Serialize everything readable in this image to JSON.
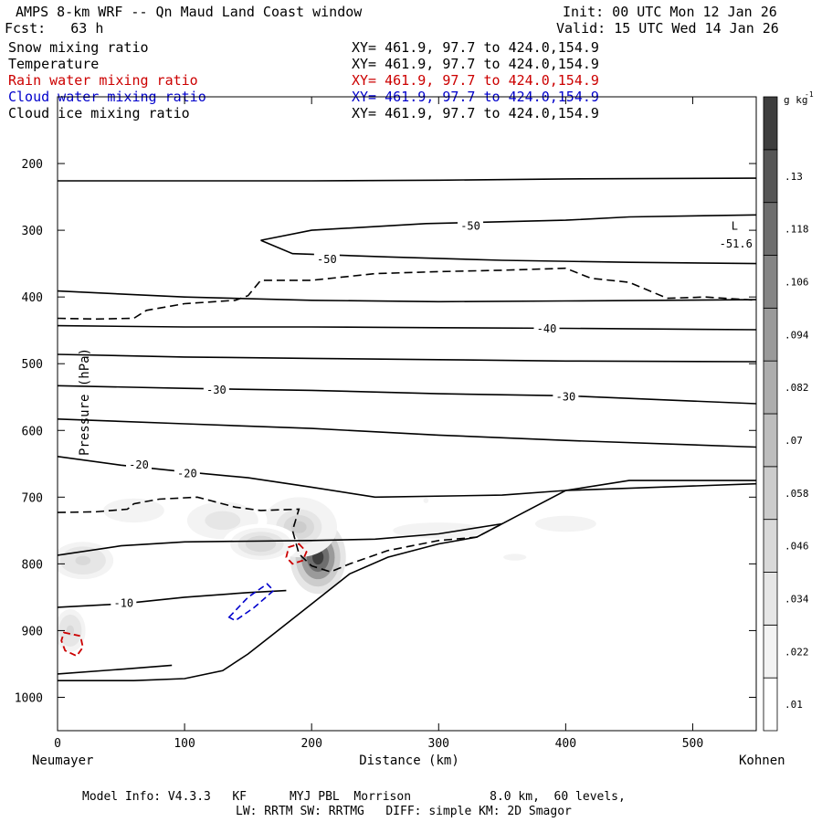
{
  "header": {
    "title": "AMPS 8-km WRF -- Qn Maud Land Coast window",
    "init": "Init: 00 UTC Mon 12 Jan 26",
    "fcst": "Fcst:   63 h",
    "valid": "Valid: 15 UTC Wed 14 Jan 26"
  },
  "legend": [
    {
      "name": "Snow mixing ratio",
      "xy": "XY= 461.9, 97.7 to 424.0,154.9",
      "color": "#000000"
    },
    {
      "name": "Temperature",
      "xy": "XY= 461.9, 97.7 to 424.0,154.9",
      "color": "#000000"
    },
    {
      "name": "Rain water mixing ratio",
      "xy": "XY= 461.9, 97.7 to 424.0,154.9",
      "color": "#cc0000"
    },
    {
      "name": "Cloud water mixing ratio",
      "xy": "XY= 461.9, 97.7 to 424.0,154.9",
      "color": "#0000cc"
    },
    {
      "name": "Cloud ice mixing ratio",
      "xy": "XY= 461.9, 97.7 to 424.0,154.9",
      "color": "#000000"
    }
  ],
  "chart_data": {
    "type": "cross-section contour",
    "title": "AMPS 8-km WRF -- Qn Maud Land Coast window",
    "xlabel": "Distance (km)",
    "ylabel": "Pressure (hPa)",
    "xlim": [
      0,
      550
    ],
    "ylim": [
      1050,
      100
    ],
    "x_ticks": [
      0,
      100,
      200,
      300,
      400,
      500
    ],
    "y_ticks": [
      200,
      300,
      400,
      500,
      600,
      700,
      800,
      900,
      1000
    ],
    "left_endpoint": "Neumayer",
    "right_endpoint": "Kohnen",
    "colorbar": {
      "unit": "g kg",
      "unit_exponent": "-1",
      "levels": [
        ".01",
        ".022",
        ".034",
        ".046",
        ".058",
        ".07",
        ".082",
        ".094",
        ".106",
        ".118",
        ".13"
      ],
      "grays": [
        "#ffffff",
        "#f3f3f3",
        "#e6e6e6",
        "#d9d9d9",
        "#cccccc",
        "#bdbdbd",
        "#adadad",
        "#9a9a9a",
        "#858585",
        "#6e6e6e",
        "#565656",
        "#3e3e3e"
      ]
    },
    "temperature_contours": [
      {
        "level": -50,
        "points": [
          [
            0,
            226
          ],
          [
            100,
            226
          ],
          [
            200,
            226
          ],
          [
            300,
            225
          ],
          [
            400,
            223
          ],
          [
            550,
            222
          ]
        ]
      },
      {
        "level": -50,
        "points": [
          [
            160,
            315
          ],
          [
            200,
            300
          ],
          [
            290,
            290
          ],
          [
            400,
            285
          ],
          [
            450,
            280
          ],
          [
            550,
            277
          ]
        ]
      },
      {
        "level": -50,
        "points": [
          [
            160,
            315
          ],
          [
            185,
            335
          ],
          [
            260,
            340
          ],
          [
            350,
            345
          ],
          [
            450,
            348
          ],
          [
            550,
            350
          ]
        ]
      },
      {
        "level": -45,
        "points": [
          [
            0,
            391
          ],
          [
            100,
            400
          ],
          [
            200,
            405
          ],
          [
            300,
            407
          ],
          [
            400,
            406
          ],
          [
            550,
            404
          ]
        ]
      },
      {
        "level": -40,
        "points": [
          [
            0,
            443
          ],
          [
            100,
            445
          ],
          [
            200,
            445
          ],
          [
            300,
            446
          ],
          [
            400,
            447
          ],
          [
            550,
            449
          ]
        ]
      },
      {
        "level": -35,
        "points": [
          [
            0,
            486
          ],
          [
            100,
            490
          ],
          [
            200,
            492
          ],
          [
            300,
            494
          ],
          [
            400,
            496
          ],
          [
            550,
            497
          ]
        ]
      },
      {
        "level": -30,
        "points": [
          [
            0,
            533
          ],
          [
            100,
            537
          ],
          [
            200,
            540
          ],
          [
            300,
            545
          ],
          [
            400,
            548
          ],
          [
            550,
            560
          ]
        ]
      },
      {
        "level": -25,
        "points": [
          [
            0,
            583
          ],
          [
            100,
            590
          ],
          [
            200,
            597
          ],
          [
            300,
            607
          ],
          [
            400,
            615
          ],
          [
            550,
            625
          ]
        ]
      },
      {
        "level": -20,
        "points": [
          [
            0,
            639
          ],
          [
            50,
            652
          ],
          [
            100,
            662
          ],
          [
            150,
            671
          ],
          [
            200,
            685
          ],
          [
            250,
            700
          ],
          [
            350,
            697
          ],
          [
            400,
            690
          ],
          [
            550,
            680
          ]
        ]
      },
      {
        "level": -15,
        "points": [
          [
            0,
            787
          ],
          [
            50,
            773
          ],
          [
            100,
            767
          ],
          [
            200,
            765
          ],
          [
            250,
            763
          ],
          [
            300,
            755
          ],
          [
            350,
            740
          ]
        ]
      },
      {
        "level": -10,
        "points": [
          [
            0,
            865
          ],
          [
            50,
            860
          ],
          [
            100,
            850
          ],
          [
            150,
            843
          ],
          [
            180,
            840
          ]
        ]
      },
      {
        "level": -5,
        "points": [
          [
            0,
            965
          ],
          [
            50,
            958
          ],
          [
            90,
            952
          ]
        ]
      }
    ],
    "terrain": [
      [
        0,
        975
      ],
      [
        30,
        975
      ],
      [
        60,
        975
      ],
      [
        100,
        972
      ],
      [
        130,
        960
      ],
      [
        150,
        935
      ],
      [
        170,
        905
      ],
      [
        200,
        860
      ],
      [
        230,
        815
      ],
      [
        260,
        790
      ],
      [
        300,
        770
      ],
      [
        330,
        760
      ],
      [
        360,
        730
      ],
      [
        400,
        690
      ],
      [
        450,
        675
      ],
      [
        550,
        675
      ]
    ],
    "ice_contours": [
      {
        "points": [
          [
            0,
            432
          ],
          [
            30,
            433
          ],
          [
            60,
            432
          ],
          [
            70,
            420
          ],
          [
            100,
            410
          ],
          [
            140,
            405
          ],
          [
            150,
            398
          ],
          [
            160,
            375
          ],
          [
            200,
            375
          ],
          [
            250,
            365
          ],
          [
            300,
            362
          ],
          [
            350,
            360
          ],
          [
            400,
            357
          ],
          [
            420,
            372
          ],
          [
            450,
            378
          ],
          [
            480,
            402
          ],
          [
            510,
            400
          ],
          [
            550,
            405
          ]
        ]
      },
      {
        "points": [
          [
            0,
            723
          ],
          [
            30,
            722
          ],
          [
            55,
            718
          ],
          [
            60,
            710
          ],
          [
            80,
            703
          ],
          [
            110,
            700
          ],
          [
            140,
            715
          ],
          [
            160,
            720
          ],
          [
            190,
            718
          ],
          [
            185,
            750
          ],
          [
            190,
            785
          ],
          [
            200,
            803
          ],
          [
            215,
            812
          ],
          [
            230,
            800
          ],
          [
            245,
            790
          ],
          [
            260,
            780
          ],
          [
            300,
            765
          ],
          [
            330,
            760
          ],
          [
            350,
            740
          ]
        ]
      }
    ],
    "rain_contours": [
      {
        "points": [
          [
            190,
            770
          ],
          [
            196,
            782
          ],
          [
            193,
            795
          ],
          [
            185,
            800
          ],
          [
            180,
            790
          ],
          [
            182,
            775
          ]
        ]
      },
      {
        "points": [
          [
            5,
            903
          ],
          [
            18,
            908
          ],
          [
            20,
            925
          ],
          [
            15,
            938
          ],
          [
            6,
            930
          ],
          [
            3,
            915
          ]
        ]
      }
    ],
    "cloud_water_contours": [
      {
        "points": [
          [
            135,
            880
          ],
          [
            150,
            850
          ],
          [
            165,
            830
          ],
          [
            170,
            840
          ],
          [
            155,
            865
          ],
          [
            140,
            885
          ]
        ]
      }
    ],
    "shading": [
      {
        "x": 205,
        "p": 790,
        "rx": 22,
        "ry": 55,
        "c": 0.14
      },
      {
        "x": 190,
        "p": 745,
        "rx": 30,
        "ry": 45,
        "c": 0.05
      },
      {
        "x": 20,
        "p": 795,
        "rx": 30,
        "ry": 35,
        "c": 0.04
      },
      {
        "x": 60,
        "p": 720,
        "rx": 40,
        "ry": 30,
        "c": 0.02
      },
      {
        "x": 130,
        "p": 735,
        "rx": 35,
        "ry": 35,
        "c": 0.03
      },
      {
        "x": 160,
        "p": 770,
        "rx": 30,
        "ry": 30,
        "c": 0.045
      },
      {
        "x": 300,
        "p": 750,
        "rx": 60,
        "ry": 20,
        "c": 0.02
      },
      {
        "x": 400,
        "p": 740,
        "rx": 60,
        "ry": 30,
        "c": 0.015
      },
      {
        "x": 10,
        "p": 900,
        "rx": 15,
        "ry": 40,
        "c": 0.04
      },
      {
        "x": 290,
        "p": 705,
        "rx": 10,
        "ry": 20,
        "c": 0.012
      },
      {
        "x": 360,
        "p": 790,
        "rx": 45,
        "ry": 25,
        "c": 0.012
      }
    ],
    "labels": [
      {
        "text": "-50",
        "x": 325,
        "p": 292
      },
      {
        "text": "-50",
        "x": 212,
        "p": 342
      },
      {
        "text": "-40",
        "x": 385,
        "p": 446
      },
      {
        "text": "-30",
        "x": 125,
        "p": 538
      },
      {
        "text": "-30",
        "x": 400,
        "p": 548
      },
      {
        "text": "-20",
        "x": 64,
        "p": 650
      },
      {
        "text": "-20",
        "x": 102,
        "p": 663
      },
      {
        "text": "-10",
        "x": 52,
        "p": 858
      }
    ],
    "low_marker": {
      "text": "L",
      "x": 533,
      "p": 292
    },
    "low_value": {
      "text": "-51.6",
      "x": 534,
      "p": 319
    }
  },
  "footer": {
    "line1": "Model Info: V4.3.3   KF      MYJ PBL  Morrison           8.0 km,  60 levels,",
    "line2": "LW: RRTM SW: RRTMG   DIFF: simple KM: 2D Smagor"
  }
}
